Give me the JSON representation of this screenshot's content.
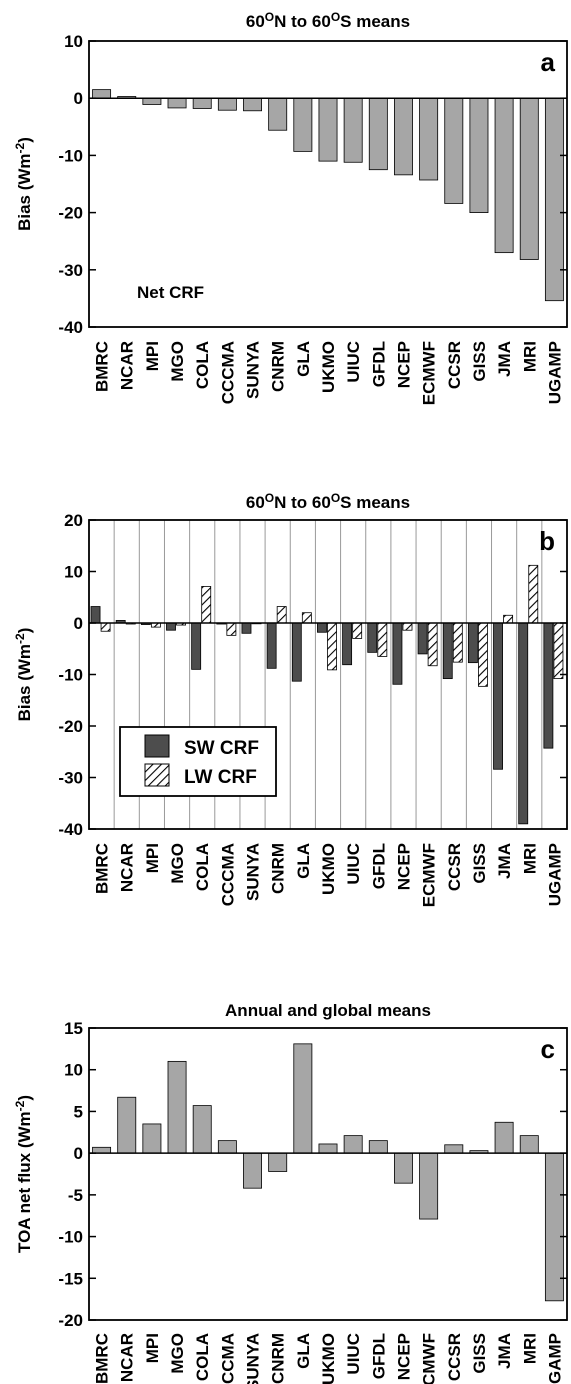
{
  "colors": {
    "bar_gray": "#a6a6a6",
    "bar_dark": "#4d4d4d",
    "axis": "#000000",
    "grid": "#999999"
  },
  "categories": [
    "BMRC",
    "NCAR",
    "MPI",
    "MGO",
    "COLA",
    "CCCMA",
    "SUNYA",
    "CNRM",
    "GLA",
    "UKMO",
    "UIUC",
    "GFDL",
    "NCEP",
    "ECMWF",
    "CCSR",
    "GISS",
    "JMA",
    "MRI",
    "UGAMP"
  ],
  "chart_data": [
    {
      "type": "bar",
      "panel": "a",
      "title_parts": [
        "60",
        "O",
        "N to 60",
        "O",
        "S means"
      ],
      "ylabel_parts": [
        "Bias (Wm",
        "-2",
        ")"
      ],
      "annotation": "Net CRF",
      "ylim": [
        -40,
        10
      ],
      "yticks": [
        "10",
        "0",
        "-10",
        "-20",
        "-30",
        "-40"
      ],
      "ytick_values": [
        10,
        0,
        -10,
        -20,
        -30,
        -40
      ],
      "grid": false,
      "values": [
        1.5,
        0.3,
        -1.1,
        -1.7,
        -1.8,
        -2.1,
        -2.2,
        -5.6,
        -9.3,
        -11.0,
        -11.2,
        -12.5,
        -13.4,
        -14.3,
        -18.4,
        -20.0,
        -27.0,
        -28.2,
        -35.4
      ]
    },
    {
      "type": "bar",
      "panel": "b",
      "title_parts": [
        "60",
        "O",
        "N to 60",
        "O",
        "S means"
      ],
      "ylabel_parts": [
        "Bias (Wm",
        "-2",
        ")"
      ],
      "ylim": [
        -40,
        20
      ],
      "yticks": [
        "20",
        "10",
        "0",
        "-10",
        "-20",
        "-30",
        "-40"
      ],
      "ytick_values": [
        20,
        10,
        0,
        -10,
        -20,
        -30,
        -40
      ],
      "grid": true,
      "legend_placement": "bottom-left",
      "series": [
        {
          "name": "SW CRF",
          "values": [
            3.2,
            0.5,
            -0.3,
            -1.4,
            -9.0,
            -0.2,
            -2.0,
            -8.8,
            -11.3,
            -1.8,
            -8.1,
            -5.7,
            -11.9,
            -6.0,
            -10.8,
            -7.7,
            -28.4,
            -39.0,
            -24.3
          ]
        },
        {
          "name": "LW CRF",
          "values": [
            -1.6,
            -0.2,
            -0.8,
            -0.4,
            7.1,
            -2.4,
            -0.1,
            3.2,
            2.0,
            -9.1,
            -3.0,
            -6.5,
            -1.4,
            -8.3,
            -7.6,
            -12.3,
            1.5,
            11.2,
            -10.8
          ]
        }
      ]
    },
    {
      "type": "bar",
      "panel": "c",
      "title": "Annual and global means",
      "ylabel_parts": [
        "TOA net flux (Wm",
        "-2",
        ")"
      ],
      "ylim": [
        -20,
        15
      ],
      "yticks": [
        "15",
        "10",
        "5",
        "0",
        "-5",
        "-10",
        "-15",
        "-20"
      ],
      "ytick_values": [
        15,
        10,
        5,
        0,
        -5,
        -10,
        -15,
        -20
      ],
      "grid": false,
      "values": [
        0.7,
        6.7,
        3.5,
        11.0,
        5.7,
        1.5,
        -4.2,
        -2.2,
        13.1,
        1.1,
        2.1,
        1.5,
        -3.6,
        -7.9,
        1.0,
        0.3,
        3.7,
        2.1,
        -17.7
      ]
    }
  ]
}
